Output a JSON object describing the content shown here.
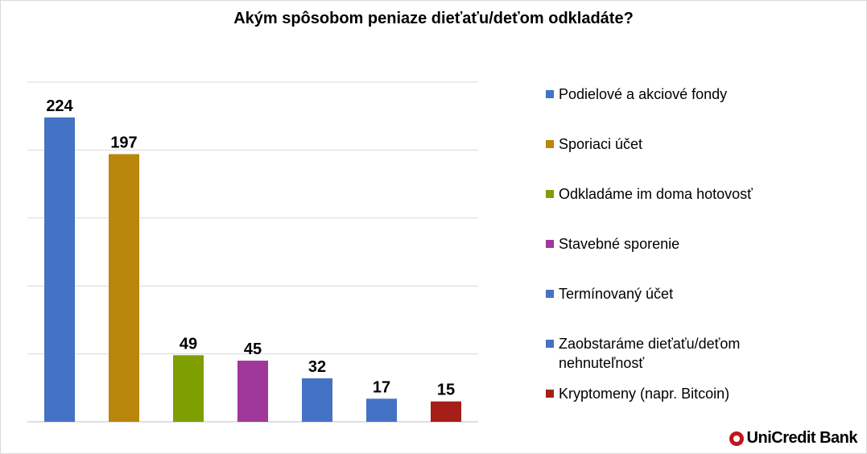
{
  "chart_data": {
    "type": "bar",
    "title": "Akým spôsobom peniaze dieťaťu/deťom odkladáte?",
    "categories": [
      "Podielové a akciové fondy",
      "Sporiaci účet",
      "Odkladáme im doma hotovosť",
      "Stavebné sporenie",
      "Termínovaný účet",
      "Zaobstaráme dieťaťu/deťom nehnuteľnosť",
      "Kryptomeny (napr. Bitcoin)"
    ],
    "values": [
      224,
      197,
      49,
      45,
      32,
      17,
      15
    ],
    "colors": [
      "#4472c4",
      "#b8860b",
      "#7f9f00",
      "#a0379b",
      "#4472c4",
      "#4472c4",
      "#a51f18"
    ],
    "ylim": [
      0,
      250
    ],
    "grid": true,
    "legend": "right",
    "xlabel": "",
    "ylabel": ""
  },
  "brand": {
    "name": "UniCredit Bank"
  }
}
